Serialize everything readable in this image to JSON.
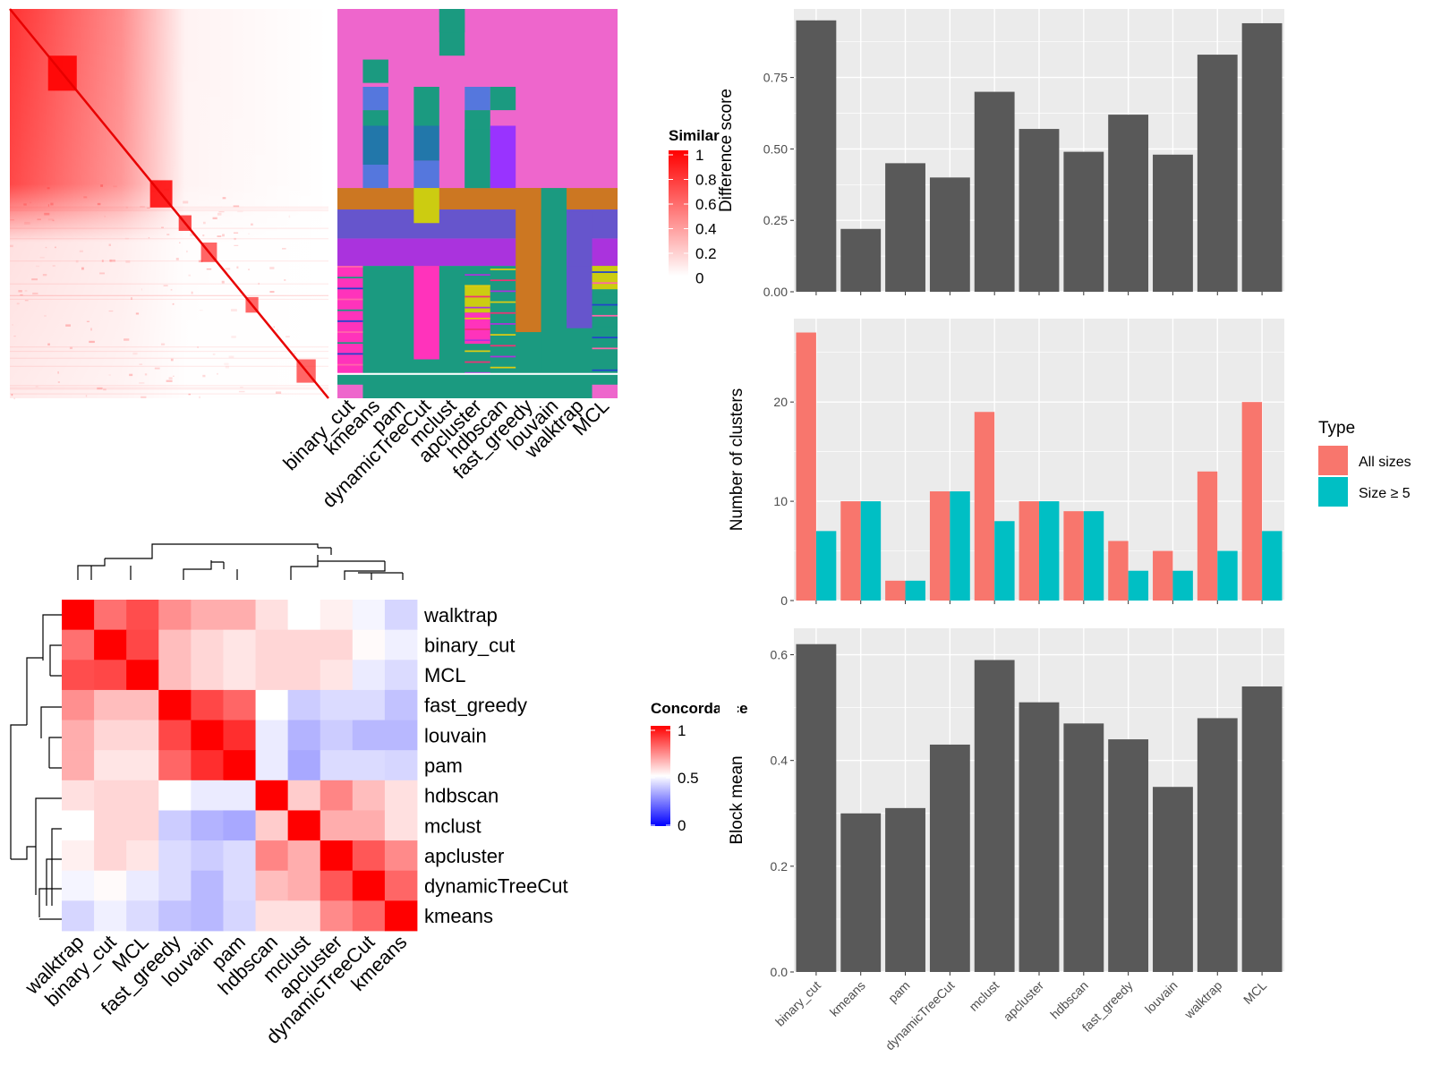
{
  "similarity_legend": {
    "title": "Similarity",
    "ticks": [
      "1",
      "0.8",
      "0.6",
      "0.4",
      "0.2",
      "0"
    ]
  },
  "concordance_legend": {
    "title": "Concordance",
    "ticks": [
      "1",
      "0.5",
      "0"
    ]
  },
  "colors": {
    "bar_fill": "#595959",
    "panel_bg": "#ebebeb",
    "all_sizes": "#F8766D",
    "size_ge5": "#00BFC4",
    "heat_high": "#ff0000",
    "heat_low_blue": "#0000ff"
  },
  "chart_data": [
    {
      "type": "heatmap",
      "id": "similarity_matrix",
      "color_scale": {
        "title": "Similarity",
        "range": [
          0,
          1
        ]
      }
    },
    {
      "type": "heatmap",
      "id": "cluster_membership",
      "columns": [
        "binary_cut",
        "kmeans",
        "pam",
        "dynamicTreeCut",
        "mclust",
        "apcluster",
        "hdbscan",
        "fast_greedy",
        "louvain",
        "walktrap",
        "MCL"
      ]
    },
    {
      "type": "heatmap",
      "id": "concordance",
      "rows": [
        "walktrap",
        "binary_cut",
        "MCL",
        "fast_greedy",
        "louvain",
        "pam",
        "hdbscan",
        "mclust",
        "apcluster",
        "dynamicTreeCut",
        "kmeans"
      ],
      "columns": [
        "walktrap",
        "binary_cut",
        "MCL",
        "fast_greedy",
        "louvain",
        "pam",
        "hdbscan",
        "mclust",
        "apcluster",
        "dynamicTreeCut",
        "kmeans"
      ],
      "values": [
        [
          1.0,
          0.78,
          0.85,
          0.72,
          0.66,
          0.66,
          0.56,
          0.5,
          0.53,
          0.48,
          0.42
        ],
        [
          0.78,
          1.0,
          0.86,
          0.63,
          0.58,
          0.55,
          0.58,
          0.58,
          0.58,
          0.51,
          0.47
        ],
        [
          0.85,
          0.86,
          1.0,
          0.63,
          0.58,
          0.55,
          0.58,
          0.58,
          0.55,
          0.46,
          0.43
        ],
        [
          0.72,
          0.63,
          0.63,
          1.0,
          0.86,
          0.8,
          0.5,
          0.4,
          0.43,
          0.43,
          0.38
        ],
        [
          0.66,
          0.58,
          0.58,
          0.86,
          1.0,
          0.91,
          0.46,
          0.35,
          0.4,
          0.36,
          0.36
        ],
        [
          0.66,
          0.55,
          0.55,
          0.8,
          0.91,
          1.0,
          0.46,
          0.33,
          0.43,
          0.43,
          0.42
        ],
        [
          0.56,
          0.58,
          0.58,
          0.5,
          0.46,
          0.46,
          1.0,
          0.6,
          0.74,
          0.63,
          0.56
        ],
        [
          0.5,
          0.58,
          0.58,
          0.4,
          0.35,
          0.33,
          0.6,
          1.0,
          0.66,
          0.66,
          0.56
        ],
        [
          0.53,
          0.58,
          0.55,
          0.43,
          0.4,
          0.43,
          0.74,
          0.66,
          1.0,
          0.83,
          0.73
        ],
        [
          0.48,
          0.51,
          0.46,
          0.43,
          0.36,
          0.43,
          0.63,
          0.66,
          0.83,
          1.0,
          0.8
        ],
        [
          0.42,
          0.47,
          0.43,
          0.38,
          0.36,
          0.42,
          0.56,
          0.56,
          0.73,
          0.8,
          1.0
        ]
      ],
      "color_scale": {
        "title": "Concordance",
        "range": [
          0,
          1
        ],
        "ticks": [
          0,
          0.5,
          1
        ]
      }
    },
    {
      "type": "bar",
      "id": "difference_score",
      "categories": [
        "binary_cut",
        "kmeans",
        "pam",
        "dynamicTreeCut",
        "mclust",
        "apcluster",
        "hdbscan",
        "fast_greedy",
        "louvain",
        "walktrap",
        "MCL"
      ],
      "values": [
        0.95,
        0.22,
        0.45,
        0.4,
        0.7,
        0.57,
        0.49,
        0.62,
        0.48,
        0.83,
        0.94
      ],
      "ylabel": "Difference score",
      "ylim": [
        0,
        0.99
      ],
      "yticks": [
        "0.00",
        "0.25",
        "0.50",
        "0.75"
      ]
    },
    {
      "type": "bar",
      "id": "number_of_clusters",
      "categories": [
        "binary_cut",
        "kmeans",
        "pam",
        "dynamicTreeCut",
        "mclust",
        "apcluster",
        "hdbscan",
        "fast_greedy",
        "louvain",
        "walktrap",
        "MCL"
      ],
      "series": [
        {
          "name": "All sizes",
          "values": [
            27,
            10,
            2,
            11,
            19,
            10,
            9,
            6,
            5,
            13,
            20
          ]
        },
        {
          "name": "Size ≥ 5",
          "values": [
            7,
            10,
            2,
            11,
            8,
            10,
            9,
            3,
            3,
            5,
            7
          ]
        }
      ],
      "ylabel": "Number of clusters",
      "ylim": [
        0,
        28.4
      ],
      "yticks": [
        "0",
        "10",
        "20"
      ],
      "legend": {
        "title": "Type",
        "position": "right"
      }
    },
    {
      "type": "bar",
      "id": "block_mean",
      "categories": [
        "binary_cut",
        "kmeans",
        "pam",
        "dynamicTreeCut",
        "mclust",
        "apcluster",
        "hdbscan",
        "fast_greedy",
        "louvain",
        "walktrap",
        "MCL"
      ],
      "values": [
        0.62,
        0.3,
        0.31,
        0.43,
        0.59,
        0.51,
        0.47,
        0.44,
        0.35,
        0.48,
        0.54
      ],
      "ylabel": "Block mean",
      "ylim": [
        0,
        0.65
      ],
      "yticks": [
        "0.0",
        "0.2",
        "0.4",
        "0.6"
      ]
    }
  ]
}
